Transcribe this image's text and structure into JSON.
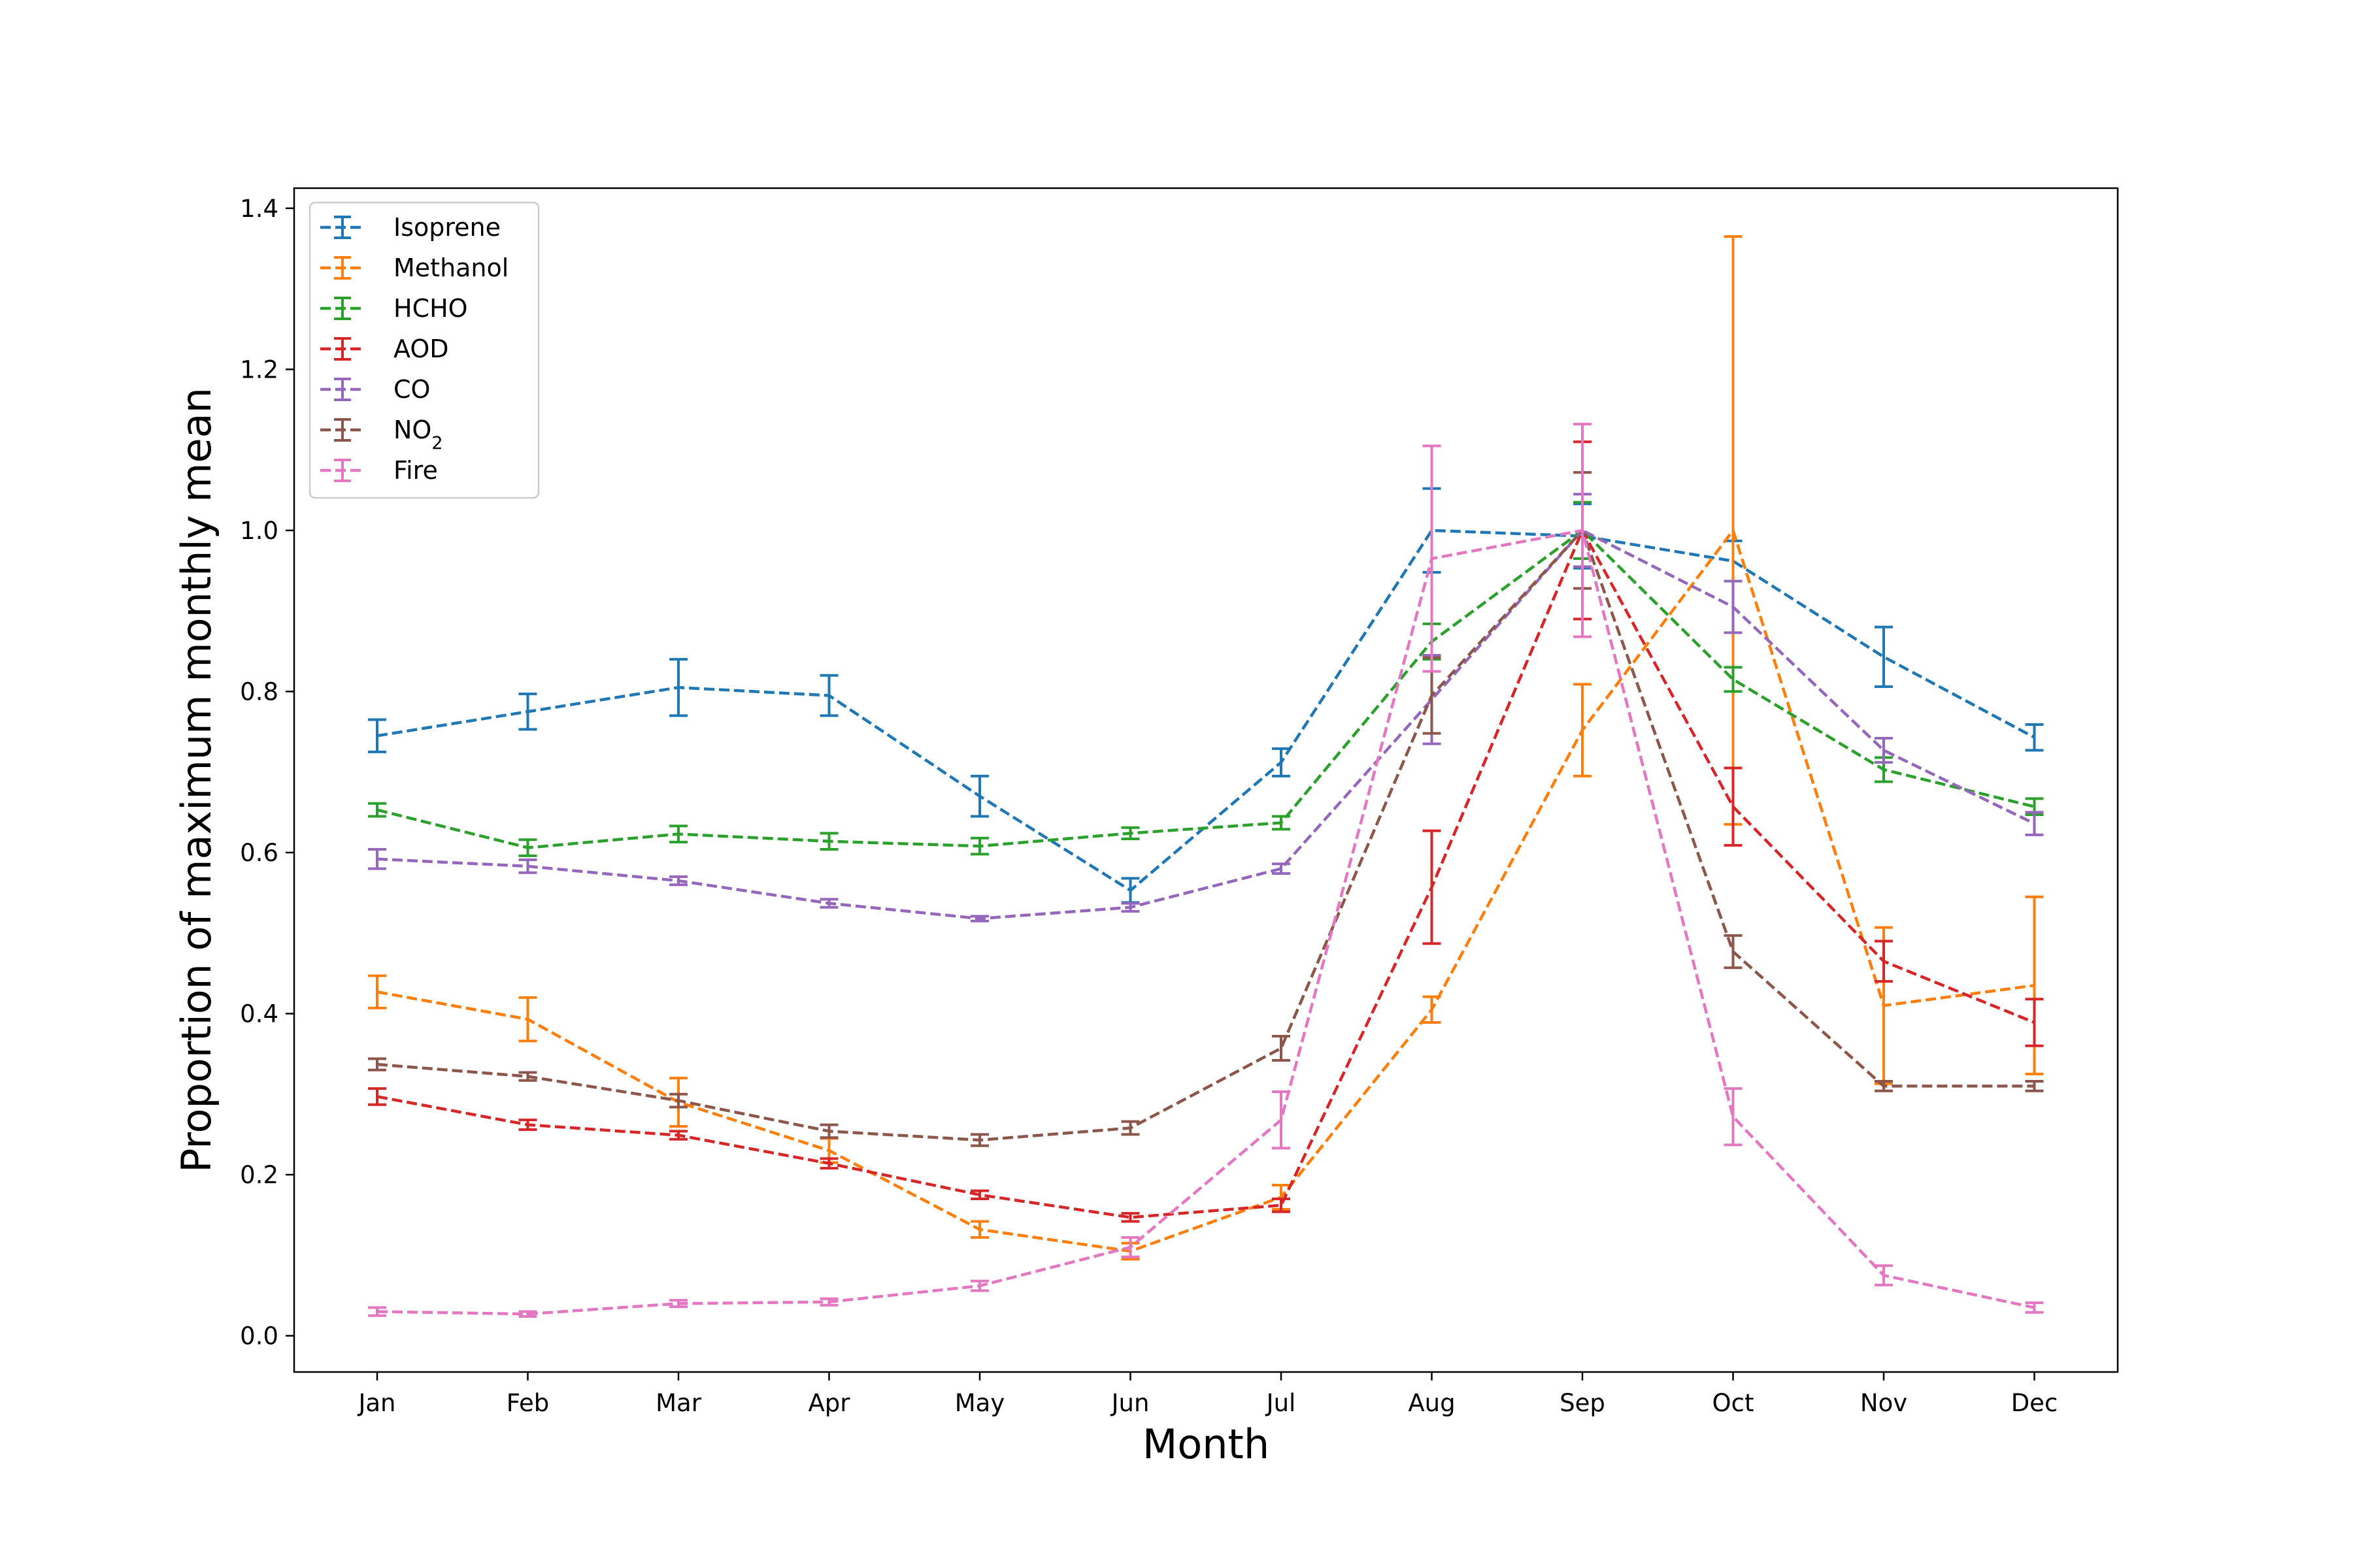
{
  "chart_data": {
    "type": "line",
    "title": "",
    "xlabel": "Month",
    "ylabel": "Proportion of maximum monthly mean",
    "categories": [
      "Jan",
      "Feb",
      "Mar",
      "Apr",
      "May",
      "Jun",
      "Jul",
      "Aug",
      "Sep",
      "Oct",
      "Nov",
      "Dec"
    ],
    "ylim": [
      -0.045,
      1.425
    ],
    "yticks": [
      "0.0",
      "0.2",
      "0.4",
      "0.6",
      "0.8",
      "1.0",
      "1.2",
      "1.4"
    ],
    "grid": false,
    "legend_position": "top-left",
    "line_style": "dashed",
    "series": [
      {
        "name": "Isoprene",
        "color": "#1f77b4",
        "values": [
          0.745,
          0.775,
          0.805,
          0.795,
          0.67,
          0.553,
          0.712,
          1.0,
          0.993,
          0.962,
          0.843,
          0.743
        ],
        "errors": [
          0.02,
          0.022,
          0.035,
          0.025,
          0.025,
          0.015,
          0.017,
          0.052,
          0.04,
          0.025,
          0.037,
          0.016
        ]
      },
      {
        "name": "Methanol",
        "color": "#ff7f0e",
        "values": [
          0.427,
          0.393,
          0.29,
          0.23,
          0.132,
          0.105,
          0.172,
          0.405,
          0.752,
          1.0,
          0.41,
          0.435
        ],
        "errors": [
          0.02,
          0.027,
          0.03,
          0.015,
          0.01,
          0.01,
          0.015,
          0.016,
          0.057,
          0.365,
          0.097,
          0.11
        ]
      },
      {
        "name": "HCHO",
        "color": "#2ca02c",
        "values": [
          0.653,
          0.606,
          0.623,
          0.614,
          0.608,
          0.624,
          0.637,
          0.862,
          1.0,
          0.815,
          0.703,
          0.657
        ],
        "errors": [
          0.008,
          0.01,
          0.01,
          0.01,
          0.01,
          0.007,
          0.008,
          0.022,
          0.035,
          0.015,
          0.015,
          0.01
        ]
      },
      {
        "name": "AOD",
        "color": "#d62728",
        "values": [
          0.297,
          0.262,
          0.249,
          0.214,
          0.175,
          0.147,
          0.162,
          0.557,
          1.0,
          0.657,
          0.465,
          0.389
        ],
        "errors": [
          0.01,
          0.006,
          0.005,
          0.006,
          0.005,
          0.005,
          0.008,
          0.07,
          0.11,
          0.048,
          0.025,
          0.029
        ]
      },
      {
        "name": "CO",
        "color": "#9467bd",
        "values": [
          0.592,
          0.583,
          0.565,
          0.537,
          0.518,
          0.532,
          0.58,
          0.79,
          1.0,
          0.905,
          0.727,
          0.636
        ],
        "errors": [
          0.012,
          0.008,
          0.005,
          0.005,
          0.003,
          0.005,
          0.006,
          0.055,
          0.045,
          0.032,
          0.015,
          0.014
        ]
      },
      {
        "name": "NO₂",
        "color": "#8c564b",
        "values": [
          0.337,
          0.322,
          0.292,
          0.254,
          0.243,
          0.258,
          0.357,
          0.795,
          1.0,
          0.477,
          0.31,
          0.31
        ],
        "errors": [
          0.007,
          0.005,
          0.008,
          0.008,
          0.007,
          0.008,
          0.015,
          0.047,
          0.072,
          0.02,
          0.006,
          0.006
        ]
      },
      {
        "name": "Fire",
        "color": "#e377c2",
        "values": [
          0.03,
          0.027,
          0.04,
          0.042,
          0.062,
          0.11,
          0.268,
          0.965,
          1.0,
          0.272,
          0.075,
          0.035
        ],
        "errors": [
          0.005,
          0.003,
          0.004,
          0.004,
          0.006,
          0.012,
          0.035,
          0.14,
          0.132,
          0.035,
          0.012,
          0.006
        ]
      }
    ]
  }
}
